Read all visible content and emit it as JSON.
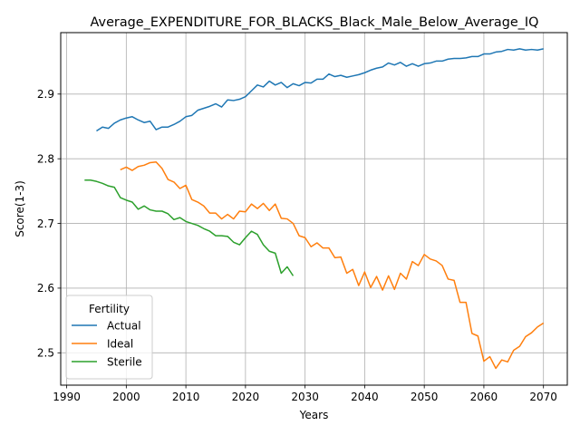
{
  "chart_data": {
    "type": "line",
    "title": "Average_EXPENDITURE_FOR_BLACKS_Black_Male_Below_Average_IQ",
    "xlabel": "Years",
    "ylabel": "Score(1-3)",
    "xlim": [
      1989,
      2074
    ],
    "ylim": [
      2.45,
      2.995
    ],
    "xticks": [
      1990,
      2000,
      2010,
      2020,
      2030,
      2040,
      2050,
      2060,
      2070
    ],
    "yticks": [
      2.5,
      2.6,
      2.7,
      2.8,
      2.9
    ],
    "grid": true,
    "legend": {
      "title": "Fertility",
      "placement": "lower-left"
    },
    "series": [
      {
        "name": "Actual",
        "color": "#1f77b4",
        "x": [
          1995,
          1996,
          1997,
          1998,
          1999,
          2000,
          2001,
          2002,
          2003,
          2004,
          2005,
          2006,
          2007,
          2008,
          2009,
          2010,
          2011,
          2012,
          2013,
          2014,
          2015,
          2016,
          2017,
          2018,
          2019,
          2020,
          2021,
          2022,
          2023,
          2024,
          2025,
          2026,
          2027,
          2028,
          2029,
          2030,
          2031,
          2032,
          2033,
          2034,
          2035,
          2036,
          2037,
          2038,
          2039,
          2040,
          2041,
          2042,
          2043,
          2044,
          2045,
          2046,
          2047,
          2048,
          2049,
          2050,
          2051,
          2052,
          2053,
          2054,
          2055,
          2056,
          2057,
          2058,
          2059,
          2060,
          2061,
          2062,
          2063,
          2064,
          2065,
          2066,
          2067,
          2068,
          2069,
          2070
        ],
        "y": [
          2.843,
          2.849,
          2.847,
          2.855,
          2.86,
          2.863,
          2.865,
          2.86,
          2.856,
          2.858,
          2.845,
          2.849,
          2.849,
          2.853,
          2.858,
          2.865,
          2.867,
          2.875,
          2.878,
          2.881,
          2.885,
          2.88,
          2.891,
          2.89,
          2.892,
          2.896,
          2.905,
          2.914,
          2.911,
          2.92,
          2.914,
          2.918,
          2.91,
          2.916,
          2.913,
          2.918,
          2.917,
          2.923,
          2.923,
          2.931,
          2.927,
          2.929,
          2.926,
          2.928,
          2.93,
          2.933,
          2.937,
          2.94,
          2.942,
          2.948,
          2.945,
          2.949,
          2.943,
          2.947,
          2.943,
          2.947,
          2.948,
          2.951,
          2.951,
          2.954,
          2.955,
          2.955,
          2.956,
          2.958,
          2.958,
          2.962,
          2.962,
          2.965,
          2.966,
          2.969,
          2.968,
          2.97,
          2.968,
          2.969,
          2.968,
          2.97
        ]
      },
      {
        "name": "Ideal",
        "color": "#ff7f0e",
        "x": [
          1999,
          2000,
          2001,
          2002,
          2003,
          2004,
          2005,
          2006,
          2007,
          2008,
          2009,
          2010,
          2011,
          2012,
          2013,
          2014,
          2015,
          2016,
          2017,
          2018,
          2019,
          2020,
          2021,
          2022,
          2023,
          2024,
          2025,
          2026,
          2027,
          2028,
          2029,
          2030,
          2031,
          2032,
          2033,
          2034,
          2035,
          2036,
          2037,
          2038,
          2039,
          2040,
          2041,
          2042,
          2043,
          2044,
          2045,
          2046,
          2047,
          2048,
          2049,
          2050,
          2051,
          2052,
          2053,
          2054,
          2055,
          2056,
          2057,
          2058,
          2059,
          2060,
          2061,
          2062,
          2063,
          2064,
          2065,
          2066,
          2067,
          2068,
          2069,
          2070
        ],
        "y": [
          2.783,
          2.787,
          2.782,
          2.788,
          2.79,
          2.794,
          2.795,
          2.785,
          2.768,
          2.764,
          2.754,
          2.759,
          2.737,
          2.733,
          2.727,
          2.716,
          2.716,
          2.707,
          2.714,
          2.707,
          2.719,
          2.718,
          2.73,
          2.723,
          2.731,
          2.72,
          2.73,
          2.708,
          2.707,
          2.7,
          2.681,
          2.678,
          2.664,
          2.67,
          2.662,
          2.662,
          2.647,
          2.648,
          2.623,
          2.629,
          2.604,
          2.625,
          2.601,
          2.618,
          2.597,
          2.619,
          2.598,
          2.623,
          2.614,
          2.641,
          2.635,
          2.652,
          2.645,
          2.642,
          2.635,
          2.614,
          2.612,
          2.578,
          2.578,
          2.53,
          2.526,
          2.487,
          2.494,
          2.476,
          2.489,
          2.486,
          2.504,
          2.51,
          2.525,
          2.531,
          2.54,
          2.546
        ]
      },
      {
        "name": "Sterile",
        "color": "#2ca02c",
        "x": [
          1993,
          1994,
          1995,
          1996,
          1997,
          1998,
          1999,
          2000,
          2001,
          2002,
          2003,
          2004,
          2005,
          2006,
          2007,
          2008,
          2009,
          2010,
          2011,
          2012,
          2013,
          2014,
          2015,
          2016,
          2017,
          2018,
          2019,
          2020,
          2021,
          2022,
          2023,
          2024,
          2025,
          2026,
          2027,
          2028
        ],
        "y": [
          2.767,
          2.767,
          2.765,
          2.762,
          2.758,
          2.756,
          2.74,
          2.736,
          2.733,
          2.722,
          2.727,
          2.721,
          2.719,
          2.719,
          2.715,
          2.706,
          2.709,
          2.703,
          2.7,
          2.697,
          2.692,
          2.688,
          2.681,
          2.681,
          2.68,
          2.671,
          2.667,
          2.678,
          2.688,
          2.683,
          2.667,
          2.657,
          2.654,
          2.623,
          2.633,
          2.619
        ]
      }
    ]
  }
}
